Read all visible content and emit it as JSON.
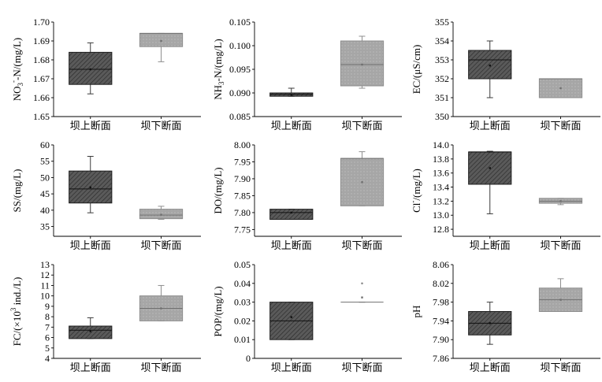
{
  "figure": {
    "colors": {
      "upstream_fill": "#5a5a5a",
      "upstream_hatch": "#2a2a2a",
      "downstream_fill": "#a6a6a6",
      "downstream_hatch": "#bdbdbd",
      "axis": "#000000",
      "whisker_upstream": "#3a3a3a",
      "whisker_downstream": "#8f8f8f"
    }
  },
  "chart_data": [
    {
      "type": "box",
      "ylabel_main": "NO",
      "ylabel_sub": "3",
      "ylabel_sup": "-",
      "ylabel_rest": "-N/(mg/L)",
      "categories": [
        "坝上断面",
        "坝下断面"
      ],
      "yticks": [
        "1.65",
        "1.66",
        "1.67",
        "1.68",
        "1.69",
        "1.70"
      ],
      "ylim": [
        1.65,
        1.7
      ],
      "boxes": [
        {
          "min": 1.662,
          "q1": 1.667,
          "median": 1.675,
          "q3": 1.684,
          "max": 1.689,
          "mean": 1.675
        },
        {
          "min": 1.679,
          "q1": 1.687,
          "median": 1.694,
          "q3": 1.694,
          "max": 1.694,
          "mean": 1.69
        }
      ]
    },
    {
      "type": "box",
      "ylabel_main": "NH",
      "ylabel_sub": "3",
      "ylabel_sup": "",
      "ylabel_rest": "-N/(mg/L)",
      "categories": [
        "坝上断面",
        "坝下断面"
      ],
      "yticks": [
        "0.085",
        "0.090",
        "0.095",
        "0.100",
        "0.105"
      ],
      "ylim": [
        0.085,
        0.105
      ],
      "boxes": [
        {
          "min": 0.0893,
          "q1": 0.0893,
          "median": 0.0897,
          "q3": 0.09,
          "max": 0.091,
          "mean": 0.0896
        },
        {
          "min": 0.091,
          "q1": 0.0915,
          "median": 0.096,
          "q3": 0.101,
          "max": 0.102,
          "mean": 0.096
        }
      ]
    },
    {
      "type": "box",
      "ylabel_main": "EC/(μS/cm)",
      "ylabel_sub": "",
      "ylabel_sup": "",
      "ylabel_rest": "",
      "categories": [
        "坝上断面",
        "坝下断面"
      ],
      "yticks": [
        "350",
        "351",
        "352",
        "353",
        "354",
        "355"
      ],
      "ylim": [
        350,
        355
      ],
      "boxes": [
        {
          "min": 351,
          "q1": 352,
          "median": 353,
          "q3": 353.5,
          "max": 354,
          "mean": 352.7
        },
        {
          "min": 351,
          "q1": 351,
          "median": 352,
          "q3": 352,
          "max": 352,
          "mean": 351.5
        }
      ]
    },
    {
      "type": "box",
      "ylabel_main": "SS/(mg/L)",
      "ylabel_sub": "",
      "ylabel_sup": "",
      "ylabel_rest": "",
      "categories": [
        "坝上断面",
        "坝下断面"
      ],
      "yticks": [
        "35",
        "40",
        "45",
        "50",
        "55",
        "60"
      ],
      "ylim": [
        32,
        60
      ],
      "boxes": [
        {
          "min": 39.2,
          "q1": 42.2,
          "median": 46.5,
          "q3": 52.0,
          "max": 56.5,
          "mean": 47.0
        },
        {
          "min": 37.2,
          "q1": 37.4,
          "median": 38.5,
          "q3": 40.3,
          "max": 41.2,
          "mean": 38.6
        }
      ]
    },
    {
      "type": "box",
      "ylabel_main": "DO/(mg/L)",
      "ylabel_sub": "",
      "ylabel_sup": "",
      "ylabel_rest": "",
      "categories": [
        "坝上断面",
        "坝下断面"
      ],
      "yticks": [
        "7.75",
        "7.80",
        "7.85",
        "7.90",
        "7.95",
        "8.00"
      ],
      "ylim": [
        7.73,
        8.0
      ],
      "boxes": [
        {
          "min": 7.78,
          "q1": 7.78,
          "median": 7.8,
          "q3": 7.81,
          "max": 7.81,
          "mean": 7.8
        },
        {
          "min": 7.82,
          "q1": 7.82,
          "median": 7.96,
          "q3": 7.96,
          "max": 7.98,
          "mean": 7.89
        }
      ]
    },
    {
      "type": "box",
      "ylabel_main": "Cl",
      "ylabel_sub": "",
      "ylabel_sup": "-",
      "ylabel_rest": "/(mg/L)",
      "categories": [
        "坝上断面",
        "坝下断面"
      ],
      "yticks": [
        "12.8",
        "13.0",
        "13.2",
        "13.4",
        "13.6",
        "13.8",
        "14.0"
      ],
      "ylim": [
        12.7,
        14.0
      ],
      "boxes": [
        {
          "min": 13.02,
          "q1": 13.44,
          "median": 13.9,
          "q3": 13.9,
          "max": 13.91,
          "mean": 13.67
        },
        {
          "min": 13.15,
          "q1": 13.17,
          "median": 13.2,
          "q3": 13.24,
          "max": 13.24,
          "mean": 13.2
        }
      ]
    },
    {
      "type": "box",
      "ylabel_main": "FC/(×10",
      "ylabel_sub": "",
      "ylabel_sup": "3",
      "ylabel_rest": " ind./L)",
      "categories": [
        "坝上断面",
        "坝下断面"
      ],
      "yticks": [
        "4",
        "5",
        "6",
        "7",
        "8",
        "9",
        "10",
        "11",
        "12",
        "13"
      ],
      "ylim": [
        4,
        13
      ],
      "boxes": [
        {
          "min": 5.9,
          "q1": 5.9,
          "median": 6.7,
          "q3": 7.1,
          "max": 7.9,
          "mean": 6.6
        },
        {
          "min": 7.6,
          "q1": 7.6,
          "median": 8.8,
          "q3": 10.0,
          "max": 11.0,
          "mean": 8.8
        }
      ]
    },
    {
      "type": "box",
      "ylabel_main": "POP/(mg/L)",
      "ylabel_sub": "",
      "ylabel_sup": "",
      "ylabel_rest": "",
      "categories": [
        "坝上断面",
        "坝下断面"
      ],
      "yticks": [
        "0",
        "0.01",
        "0.02",
        "0.03",
        "0.04",
        "0.05"
      ],
      "ylim": [
        0,
        0.05
      ],
      "boxes": [
        {
          "min": 0.01,
          "q1": 0.01,
          "median": 0.02,
          "q3": 0.03,
          "max": 0.03,
          "mean": 0.022
        },
        {
          "min": 0.03,
          "q1": 0.03,
          "median": 0.03,
          "q3": 0.03,
          "max": 0.03,
          "mean": 0.0325,
          "outliers": [
            0.04
          ]
        }
      ]
    },
    {
      "type": "box",
      "ylabel_main": "pH",
      "ylabel_sub": "",
      "ylabel_sup": "",
      "ylabel_rest": "",
      "categories": [
        "坝上断面",
        "坝下断面"
      ],
      "yticks": [
        "7.86",
        "7.90",
        "7.94",
        "7.98",
        "8.02",
        "8.06"
      ],
      "ylim": [
        7.86,
        8.06
      ],
      "boxes": [
        {
          "min": 7.89,
          "q1": 7.91,
          "median": 7.935,
          "q3": 7.96,
          "max": 7.98,
          "mean": 7.935
        },
        {
          "min": 7.96,
          "q1": 7.96,
          "median": 7.985,
          "q3": 8.01,
          "max": 8.03,
          "mean": 7.985
        }
      ]
    }
  ]
}
